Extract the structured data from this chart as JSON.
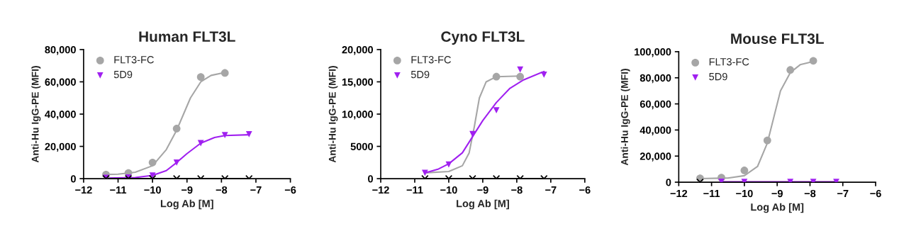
{
  "chart_data": [
    {
      "type": "scatter",
      "title": "Human FLT3L",
      "xlabel": "Log Ab [M]",
      "ylabel": "Anti-Hu IgG-PE (MFI)",
      "xlim": [
        -12,
        -6
      ],
      "xticks": [
        {
          "value": -12,
          "label": "−12"
        },
        {
          "value": -11,
          "label": "−11"
        },
        {
          "value": -10,
          "label": "−10"
        },
        {
          "value": -9,
          "label": "−9"
        },
        {
          "value": -8,
          "label": "−8"
        },
        {
          "value": -7,
          "label": "−7"
        },
        {
          "value": -6,
          "label": "−6"
        }
      ],
      "ylim": [
        0,
        80000
      ],
      "yticks": [
        {
          "value": 0,
          "label": "0"
        },
        {
          "value": 20000,
          "label": "20,000"
        },
        {
          "value": 40000,
          "label": "40,000"
        },
        {
          "value": 60000,
          "label": "60,000"
        },
        {
          "value": 80000,
          "label": "80,000"
        }
      ],
      "grid": false,
      "legend": "top left",
      "series": [
        {
          "name": "FLT3-FC",
          "color": "#a6a6a6",
          "marker": "circle",
          "x": [
            -11.35,
            -10.7,
            -10.0,
            -9.3,
            -8.6,
            -7.9
          ],
          "values": [
            2500,
            3500,
            10000,
            31000,
            63000,
            65500
          ]
        },
        {
          "name": "5D9",
          "color": "#a020f0",
          "marker": "triangle",
          "x": [
            -11.35,
            -10.7,
            -10.0,
            -9.3,
            -8.6,
            -7.9,
            -7.2
          ],
          "values": [
            500,
            700,
            2000,
            10000,
            22000,
            27000,
            27500
          ]
        },
        {
          "color": "#000000",
          "marker": "cross",
          "x": [
            -11.35,
            -10.7,
            -10.0,
            -9.3,
            -8.6,
            -7.9,
            -7.2
          ],
          "values": [
            0,
            0,
            0,
            0,
            0,
            0,
            0
          ]
        },
        {
          "type": "line",
          "color": "#a6a6a6",
          "line_style": "solid",
          "x": [
            -11.35,
            -11.0,
            -10.5,
            -10.0,
            -9.6,
            -9.3,
            -9.1,
            -8.9,
            -8.6,
            -8.3,
            -7.9
          ],
          "values": [
            2600,
            2800,
            4000,
            8000,
            18000,
            30000,
            40000,
            50000,
            60000,
            64000,
            65800
          ]
        },
        {
          "type": "line",
          "color": "#a020f0",
          "line_style": "solid",
          "x": [
            -11.35,
            -10.5,
            -10.0,
            -9.6,
            -9.3,
            -9.0,
            -8.6,
            -8.2,
            -7.9,
            -7.2
          ],
          "values": [
            400,
            700,
            2000,
            5000,
            10000,
            15500,
            22000,
            25500,
            26700,
            27200
          ]
        },
        {
          "type": "line",
          "color": "#000000",
          "line_style": "solid",
          "x": [
            -11.35,
            -7.2
          ],
          "values": [
            0,
            0
          ]
        }
      ]
    },
    {
      "type": "scatter",
      "title": "Cyno FLT3L",
      "xlabel": "Log Ab [M]",
      "ylabel": "Anti-Hu IgG-PE (MFI)",
      "xlim": [
        -12,
        -6
      ],
      "xticks": [
        {
          "value": -12,
          "label": "−12"
        },
        {
          "value": -11,
          "label": "−11"
        },
        {
          "value": -10,
          "label": "−10"
        },
        {
          "value": -9,
          "label": "−9"
        },
        {
          "value": -8,
          "label": "−8"
        },
        {
          "value": -7,
          "label": "−7"
        },
        {
          "value": -6,
          "label": "−6"
        }
      ],
      "ylim": [
        0,
        20000
      ],
      "yticks": [
        {
          "value": 0,
          "label": "0"
        },
        {
          "value": 5000,
          "label": "5000"
        },
        {
          "value": 10000,
          "label": "10,000"
        },
        {
          "value": 15000,
          "label": "15,000"
        },
        {
          "value": 20000,
          "label": "20,000"
        }
      ],
      "grid": false,
      "legend": "top left",
      "series": [
        {
          "name": "FLT3-FC",
          "color": "#a6a6a6",
          "marker": "circle",
          "x": [
            -8.6,
            -7.9
          ],
          "values": [
            15800,
            15800
          ]
        },
        {
          "name": "5D9",
          "color": "#a020f0",
          "marker": "triangle",
          "x": [
            -10.7,
            -10.0,
            -9.3,
            -8.6,
            -7.9,
            -7.2
          ],
          "values": [
            900,
            2200,
            6900,
            10600,
            16900,
            16100
          ]
        },
        {
          "color": "#000000",
          "marker": "cross",
          "x": [
            -10.7,
            -10.0,
            -9.3,
            -8.6,
            -7.9,
            -7.2
          ],
          "values": [
            0,
            0,
            0,
            0,
            0,
            0
          ]
        },
        {
          "type": "line",
          "color": "#a6a6a6",
          "line_style": "solid",
          "x": [
            -10.7,
            -10.0,
            -9.6,
            -9.4,
            -9.25,
            -9.1,
            -8.9,
            -8.6,
            -7.9
          ],
          "values": [
            900,
            1100,
            2000,
            4000,
            8000,
            12500,
            15000,
            15800,
            15900
          ]
        },
        {
          "type": "line",
          "color": "#a020f0",
          "line_style": "solid",
          "x": [
            -10.7,
            -10.3,
            -10.0,
            -9.6,
            -9.3,
            -9.0,
            -8.6,
            -8.2,
            -7.8,
            -7.2
          ],
          "values": [
            900,
            1500,
            2300,
            4000,
            6500,
            9000,
            11800,
            14000,
            15300,
            16600
          ]
        },
        {
          "type": "line",
          "color": "#000000",
          "line_style": "solid",
          "x": [
            -10.7,
            -7.2
          ],
          "values": [
            0,
            0
          ]
        }
      ]
    },
    {
      "type": "scatter",
      "title": "Mouse FLT3L",
      "xlabel": "Log Ab [M]",
      "ylabel": "Anti-Hu IgG-PE (MFI)",
      "xlim": [
        -12,
        -6
      ],
      "xticks": [
        {
          "value": -12,
          "label": "−12"
        },
        {
          "value": -11,
          "label": "−11"
        },
        {
          "value": -10,
          "label": "−10"
        },
        {
          "value": -9,
          "label": "−9"
        },
        {
          "value": -8,
          "label": "−8"
        },
        {
          "value": -7,
          "label": "−7"
        },
        {
          "value": -6,
          "label": "−6"
        }
      ],
      "ylim": [
        0,
        100000
      ],
      "yticks": [
        {
          "value": 0,
          "label": "0"
        },
        {
          "value": 20000,
          "label": "20,000"
        },
        {
          "value": 40000,
          "label": "40,000"
        },
        {
          "value": 60000,
          "label": "60,000"
        },
        {
          "value": 80000,
          "label": "80,000"
        },
        {
          "value": 100000,
          "label": "100,000"
        }
      ],
      "grid": false,
      "legend": "top left",
      "series": [
        {
          "name": "FLT3-FC",
          "color": "#a6a6a6",
          "marker": "circle",
          "x": [
            -11.35,
            -10.7,
            -10.0,
            -9.3,
            -8.6,
            -7.9
          ],
          "values": [
            3000,
            3500,
            9000,
            32000,
            86000,
            93000
          ]
        },
        {
          "name": "5D9",
          "color": "#a020f0",
          "marker": "triangle",
          "x": [
            -10.7,
            -10.0,
            -8.6,
            -7.9,
            -7.2
          ],
          "values": [
            400,
            300,
            300,
            300,
            300
          ]
        },
        {
          "color": "#000000",
          "marker": "cross",
          "x": [
            -11.35
          ],
          "values": [
            0
          ]
        },
        {
          "type": "line",
          "color": "#a6a6a6",
          "line_style": "solid",
          "x": [
            -11.35,
            -10.5,
            -10.0,
            -9.6,
            -9.3,
            -9.1,
            -8.9,
            -8.6,
            -8.3,
            -7.9
          ],
          "values": [
            2800,
            3200,
            5000,
            12000,
            30000,
            50000,
            70000,
            84000,
            90000,
            92500
          ]
        },
        {
          "type": "line",
          "color": "#a020f0",
          "line_style": "solid",
          "x": [
            -10.7,
            -7.2
          ],
          "values": [
            300,
            300
          ]
        }
      ]
    }
  ]
}
